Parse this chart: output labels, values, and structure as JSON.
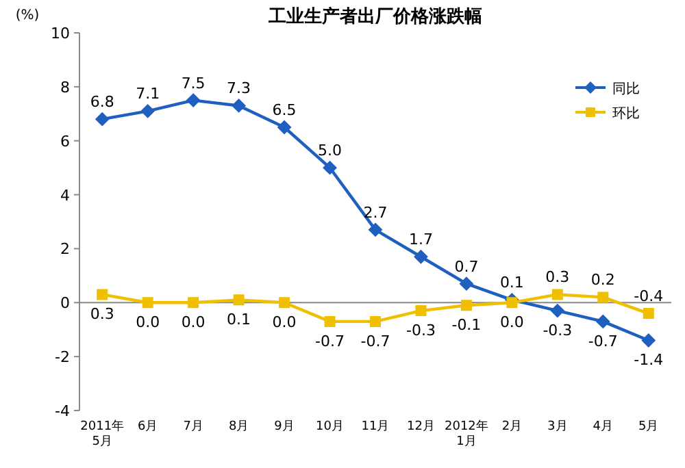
{
  "chart_data": {
    "type": "line",
    "title": "工业生产者出厂价格涨跌幅",
    "ylabel": "(%)",
    "categories": [
      "2011年\n5月",
      "6月",
      "7月",
      "8月",
      "9月",
      "10月",
      "11月",
      "12月",
      "2012年\n1月",
      "2月",
      "3月",
      "4月",
      "5月"
    ],
    "series": [
      {
        "name": "同比",
        "color": "#1f5fbf",
        "marker": "diamond",
        "values": [
          6.8,
          7.1,
          7.5,
          7.3,
          6.5,
          5.0,
          2.7,
          1.7,
          0.7,
          0.1,
          -0.3,
          -0.7,
          -1.4
        ],
        "value_labels": [
          "6.8",
          "7.1",
          "7.5",
          "7.3",
          "6.5",
          "5.0",
          "2.7",
          "1.7",
          "0.7",
          "0.1",
          "-0.3",
          "-0.7",
          "-1.4"
        ]
      },
      {
        "name": "环比",
        "color": "#f0c000",
        "marker": "square",
        "values": [
          0.3,
          0.0,
          0.0,
          0.1,
          0.0,
          -0.7,
          -0.7,
          -0.3,
          -0.1,
          0.0,
          0.3,
          0.2,
          -0.4
        ],
        "value_labels": [
          "0.3",
          "0.0",
          "0.0",
          "0.1",
          "0.0",
          "-0.7",
          "-0.7",
          "-0.3",
          "-0.1",
          "0.0",
          "0.3",
          "0.2",
          "-0.4"
        ]
      }
    ],
    "ylim": [
      -4,
      10
    ],
    "yticks": [
      -4,
      -2,
      0,
      2,
      4,
      6,
      8,
      10
    ],
    "ref_lines": [
      {
        "axis": "y",
        "value": 0,
        "color": "#888888"
      }
    ],
    "legend": "top right"
  }
}
